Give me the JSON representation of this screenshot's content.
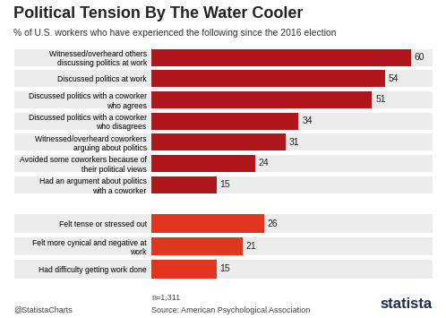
{
  "header": {
    "title": "Political Tension By The Water Cooler",
    "subtitle": "% of U.S. workers who have experienced the following since the 2016 election"
  },
  "chart_data": [
    {
      "type": "bar",
      "orientation": "horizontal",
      "categories": [
        "Witnessed/overheard others discussing politics at work",
        "Discussed politics at work",
        "Discussed politics with a coworker who agrees",
        "Discussed politics with a coworker who disagrees",
        "Witnessed/overheard coworkers arguing about politics",
        "Avoided some coworkers because of their political views",
        "Had an argument about politics with a coworker"
      ],
      "values": [
        60,
        54,
        51,
        34,
        31,
        24,
        15
      ],
      "color": "#b0161c",
      "xlim": [
        0,
        65
      ],
      "data_labels": true,
      "tick_labels": "y",
      "grid": false
    },
    {
      "type": "bar",
      "orientation": "horizontal",
      "categories": [
        "Felt tense or stressed out",
        "Felt more cynical and negative at work",
        "Had difficulty getting work done"
      ],
      "values": [
        26,
        21,
        15
      ],
      "color": "#e2351f",
      "xlim": [
        0,
        65
      ],
      "data_labels": true,
      "tick_labels": "y",
      "grid": false
    }
  ],
  "footer": {
    "n": "n=1,311",
    "credit": "@StatistaCharts",
    "source": "Source: American Psychological Association",
    "brand": "statista"
  }
}
